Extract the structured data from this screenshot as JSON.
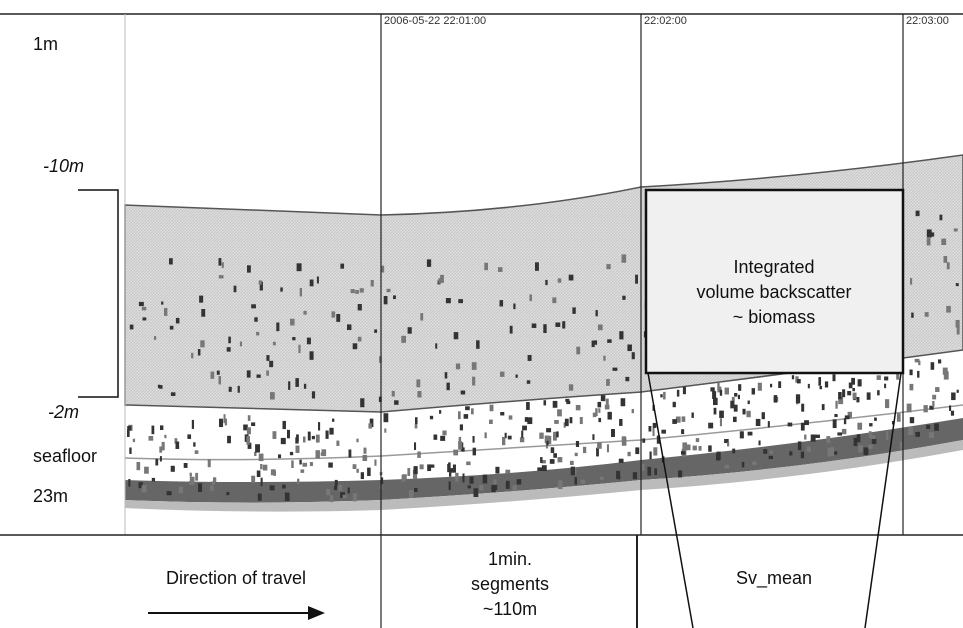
{
  "depth_labels": {
    "top": "1m",
    "layer_top": "-10m",
    "layer_bottom": "-2m",
    "seafloor": "seafloor",
    "bottom": "23m"
  },
  "time_labels": [
    "2006-05-22 22:01:00",
    "22:02:00",
    "22:03:00"
  ],
  "box_label": [
    "Integrated",
    "volume backscatter",
    "~ biomass"
  ],
  "bottom_labels": {
    "direction": "Direction of travel",
    "segments": [
      "1min.",
      "segments",
      "~110m"
    ],
    "metric": "Sv_mean"
  }
}
